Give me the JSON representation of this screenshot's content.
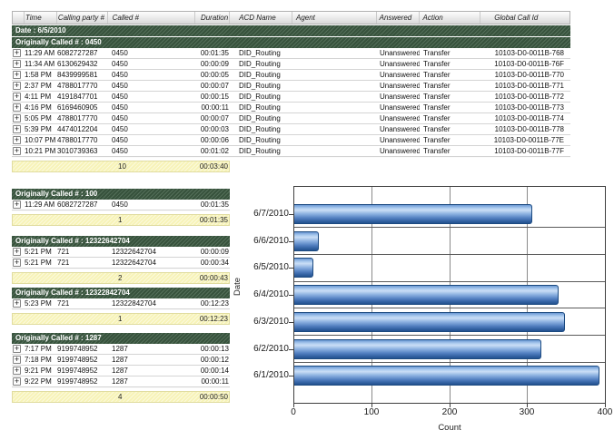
{
  "report": {
    "columns": [
      "",
      "Time",
      "Calling party #",
      "Called #",
      "Duration",
      "ACD Name",
      "Agent",
      "Answered",
      "Action",
      "Global Call Id"
    ],
    "date_band": "Date : 6/5/2010",
    "icons": {
      "expand": "+"
    },
    "groups": [
      {
        "label": "Originally Called # : 0450",
        "rows": [
          {
            "time": "11:29 AM",
            "calling_party": "6082727287",
            "called": "0450",
            "duration": "00:01:35",
            "acd_name": "DID_Routing",
            "agent": "",
            "answered": "Unanswered",
            "action": "Transfer",
            "global_call_id": "10103-D0-0011B-768"
          },
          {
            "time": "11:34 AM",
            "calling_party": "6130629432",
            "called": "0450",
            "duration": "00:00:09",
            "acd_name": "DID_Routing",
            "agent": "",
            "answered": "Unanswered",
            "action": "Transfer",
            "global_call_id": "10103-D0-0011B-76F"
          },
          {
            "time": "1:58 PM",
            "calling_party": "8439999581",
            "called": "0450",
            "duration": "00:00:05",
            "acd_name": "DID_Routing",
            "agent": "",
            "answered": "Unanswered",
            "action": "Transfer",
            "global_call_id": "10103-D0-0011B-770"
          },
          {
            "time": "2:37 PM",
            "calling_party": "4788017770",
            "called": "0450",
            "duration": "00:00:07",
            "acd_name": "DID_Routing",
            "agent": "",
            "answered": "Unanswered",
            "action": "Transfer",
            "global_call_id": "10103-D0-0011B-771"
          },
          {
            "time": "4:11 PM",
            "calling_party": "4191847701",
            "called": "0450",
            "duration": "00:00:15",
            "acd_name": "DID_Routing",
            "agent": "",
            "answered": "Unanswered",
            "action": "Transfer",
            "global_call_id": "10103-D0-0011B-772"
          },
          {
            "time": "4:16 PM",
            "calling_party": "6169460905",
            "called": "0450",
            "duration": "00:00:11",
            "acd_name": "DID_Routing",
            "agent": "",
            "answered": "Unanswered",
            "action": "Transfer",
            "global_call_id": "10103-D0-0011B-773"
          },
          {
            "time": "5:05 PM",
            "calling_party": "4788017770",
            "called": "0450",
            "duration": "00:00:07",
            "acd_name": "DID_Routing",
            "agent": "",
            "answered": "Unanswered",
            "action": "Transfer",
            "global_call_id": "10103-D0-0011B-774"
          },
          {
            "time": "5:39 PM",
            "calling_party": "4474012204",
            "called": "0450",
            "duration": "00:00:03",
            "acd_name": "DID_Routing",
            "agent": "",
            "answered": "Unanswered",
            "action": "Transfer",
            "global_call_id": "10103-D0-0011B-778"
          },
          {
            "time": "10:07 PM",
            "calling_party": "4788017770",
            "called": "0450",
            "duration": "00:00:06",
            "acd_name": "DID_Routing",
            "agent": "",
            "answered": "Unanswered",
            "action": "Transfer",
            "global_call_id": "10103-D0-0011B-77E"
          },
          {
            "time": "10:21 PM",
            "calling_party": "3010739363",
            "called": "0450",
            "duration": "00:01:02",
            "acd_name": "DID_Routing",
            "agent": "",
            "answered": "Unanswered",
            "action": "Transfer",
            "global_call_id": "10103-D0-0011B-77F"
          }
        ],
        "summary": {
          "count": "10",
          "duration": "00:03:40"
        }
      },
      {
        "label": "Originally Called # : 100",
        "rows": [
          {
            "time": "11:29 AM",
            "calling_party": "6082727287",
            "called": "0450",
            "duration": "00:01:35"
          }
        ],
        "summary": {
          "count": "1",
          "duration": "00:01:35"
        }
      },
      {
        "label": "Originally Called # : 12322642704",
        "rows": [
          {
            "time": "5:21 PM",
            "calling_party": "721",
            "called": "12322642704",
            "duration": "00:00:09"
          },
          {
            "time": "5:21 PM",
            "calling_party": "721",
            "called": "12322642704",
            "duration": "00:00:34"
          }
        ],
        "summary": {
          "count": "2",
          "duration": "00:00:43"
        }
      },
      {
        "label": "Originally Called # : 12322842704",
        "rows": [
          {
            "time": "5:23 PM",
            "calling_party": "721",
            "called": "12322842704",
            "duration": "00:12:23"
          }
        ],
        "summary": {
          "count": "1",
          "duration": "00:12:23"
        }
      },
      {
        "label": "Originally Called # : 1287",
        "rows": [
          {
            "time": "7:17 PM",
            "calling_party": "9199748952",
            "called": "1287",
            "duration": "00:00:13"
          },
          {
            "time": "7:18 PM",
            "calling_party": "9199748952",
            "called": "1287",
            "duration": "00:00:12"
          },
          {
            "time": "9:21 PM",
            "calling_party": "9199748952",
            "called": "1287",
            "duration": "00:00:14"
          },
          {
            "time": "9:22 PM",
            "calling_party": "9199748952",
            "called": "1287",
            "duration": "00:00:11"
          }
        ],
        "summary": {
          "count": "4",
          "duration": "00:00:50"
        }
      }
    ]
  },
  "colors": {
    "group_band_green": "#3d5b43",
    "summary_yellow": "#f7f3b8",
    "bar_blue": "#5b8dd0"
  },
  "chart_data": {
    "type": "bar",
    "orientation": "horizontal",
    "categories": [
      "6/7/2010",
      "6/6/2010",
      "6/5/2010",
      "6/4/2010",
      "6/3/2010",
      "6/2/2010",
      "6/1/2010"
    ],
    "values": [
      307,
      32,
      25,
      340,
      348,
      318,
      393
    ],
    "xlabel": "Count",
    "ylabel": "Date",
    "xlim": [
      0,
      400
    ],
    "xticks": [
      0,
      100,
      200,
      300,
      400
    ],
    "gridlines": true,
    "legend": false
  }
}
